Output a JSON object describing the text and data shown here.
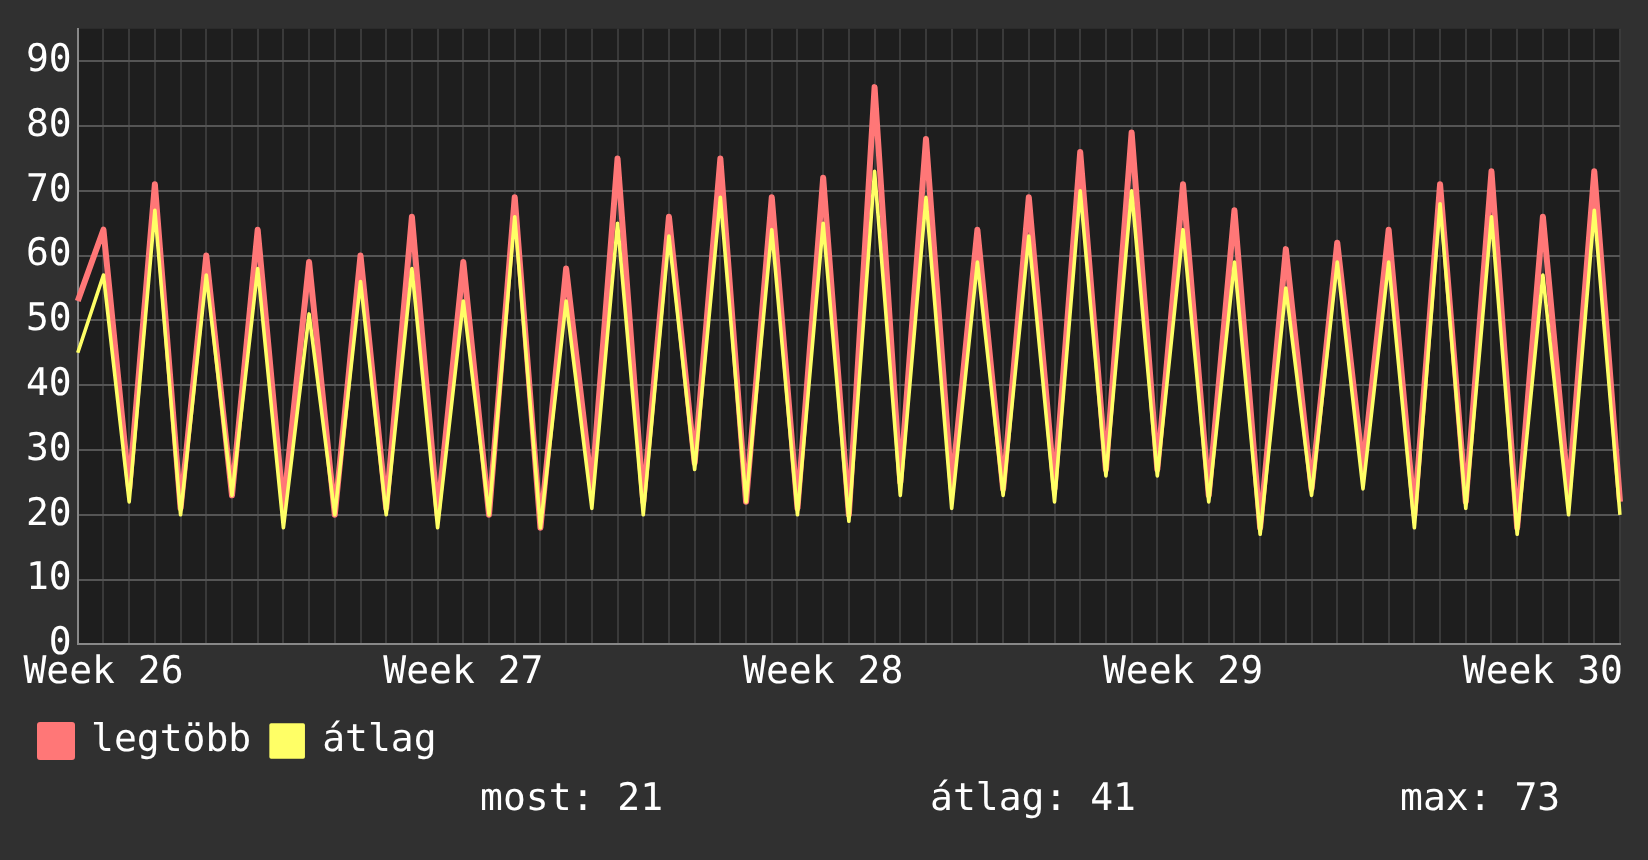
{
  "chart_data": {
    "type": "line",
    "categories": [
      null,
      "Week 26",
      null,
      null,
      null,
      null,
      null,
      null,
      null,
      null,
      null,
      null,
      null,
      null,
      null,
      "Week 27",
      null,
      null,
      null,
      null,
      null,
      null,
      null,
      null,
      null,
      null,
      null,
      null,
      null,
      "Week 28",
      null,
      null,
      null,
      null,
      null,
      null,
      null,
      null,
      null,
      null,
      null,
      null,
      null,
      "Week 29",
      null,
      null,
      null,
      null,
      null,
      null,
      null,
      null,
      null,
      null,
      null,
      null,
      null,
      "Week 30",
      null,
      null,
      null
    ],
    "series": [
      {
        "name": "legtöbb",
        "color": "#ff7777",
        "values": [
          53,
          64,
          24,
          71,
          21,
          60,
          23,
          64,
          21,
          59,
          20,
          60,
          21,
          66,
          20,
          59,
          20,
          69,
          18,
          58,
          24,
          75,
          22,
          66,
          28,
          75,
          22,
          69,
          21,
          72,
          20,
          86,
          25,
          78,
          24,
          64,
          24,
          69,
          24,
          76,
          27,
          79,
          27,
          71,
          23,
          67,
          18,
          61,
          24,
          62,
          27,
          64,
          20,
          71,
          22,
          73,
          18,
          66,
          23,
          73,
          22
        ]
      },
      {
        "name": "átlag",
        "color": "#ffff66",
        "values": [
          45,
          57,
          22,
          67,
          20,
          57,
          23,
          58,
          18,
          51,
          20,
          56,
          20,
          58,
          18,
          53,
          20,
          66,
          18,
          53,
          21,
          65,
          20,
          63,
          27,
          69,
          22,
          64,
          20,
          65,
          19,
          73,
          23,
          69,
          21,
          59,
          23,
          63,
          22,
          70,
          26,
          70,
          26,
          64,
          22,
          59,
          17,
          55,
          23,
          59,
          24,
          59,
          18,
          68,
          21,
          66,
          17,
          57,
          20,
          67,
          20
        ]
      }
    ],
    "ylim": [
      0,
      95
    ],
    "yticks": [
      0,
      10,
      20,
      30,
      40,
      50,
      60,
      70,
      80,
      90
    ],
    "grid": true,
    "legend": "bottom left",
    "annotations": [
      "most: 21",
      "átlag: 41",
      "max: 73"
    ]
  }
}
